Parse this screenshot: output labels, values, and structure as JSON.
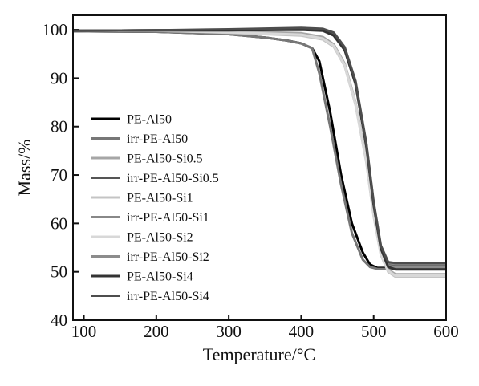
{
  "chart_data": {
    "type": "line",
    "title": "",
    "xlabel": "Temperature/°C",
    "ylabel": "Mass/%",
    "xlim": [
      85,
      600
    ],
    "ylim": [
      40,
      103
    ],
    "xticks": [
      100,
      200,
      300,
      400,
      500,
      600
    ],
    "yticks": [
      40,
      50,
      60,
      70,
      80,
      90,
      100
    ],
    "grid": false,
    "legend_position": "center-left",
    "series": [
      {
        "name": "PE-Al50",
        "color": "#000000",
        "x": [
          85,
          200,
          300,
          350,
          380,
          400,
          415,
          425,
          440,
          455,
          470,
          485,
          495,
          505,
          600
        ],
        "y": [
          99.7,
          99.6,
          99.1,
          98.4,
          97.8,
          97.2,
          96.2,
          93.5,
          83,
          70,
          60,
          54,
          51.5,
          50.8,
          50.8
        ]
      },
      {
        "name": "irr-PE-Al50",
        "color": "#777777",
        "x": [
          85,
          200,
          300,
          350,
          380,
          400,
          415,
          425,
          440,
          455,
          470,
          485,
          495,
          505,
          600
        ],
        "y": [
          99.7,
          99.6,
          99.1,
          98.4,
          97.8,
          97.2,
          96.2,
          91,
          80,
          68,
          58,
          52.5,
          51,
          50.6,
          50.6
        ]
      },
      {
        "name": "PE-Al50-Si0.5",
        "color": "#a6a6a6",
        "x": [
          85,
          200,
          300,
          400,
          430,
          445,
          460,
          475,
          490,
          500,
          510,
          520,
          530,
          600
        ],
        "y": [
          99.8,
          99.8,
          99.7,
          99.3,
          98.5,
          97,
          93,
          85,
          73,
          62,
          54,
          50.5,
          49.5,
          49.5
        ]
      },
      {
        "name": "irr-PE-Al50-Si0.5",
        "color": "#555555",
        "x": [
          85,
          200,
          300,
          400,
          430,
          445,
          460,
          475,
          490,
          500,
          510,
          520,
          530,
          600
        ],
        "y": [
          99.8,
          99.9,
          99.9,
          100.2,
          100,
          99,
          96,
          89,
          76,
          64,
          55,
          51.5,
          51.3,
          51.3
        ]
      },
      {
        "name": "PE-Al50-Si1",
        "color": "#c4c4c4",
        "x": [
          85,
          200,
          300,
          400,
          430,
          445,
          460,
          475,
          490,
          500,
          510,
          520,
          530,
          600
        ],
        "y": [
          99.8,
          99.8,
          99.4,
          98.8,
          98,
          96.5,
          92.5,
          84.5,
          72.5,
          61.5,
          53.5,
          50,
          49,
          49
        ]
      },
      {
        "name": "irr-PE-Al50-Si1",
        "color": "#888888",
        "x": [
          85,
          200,
          300,
          400,
          430,
          445,
          460,
          475,
          490,
          500,
          510,
          520,
          530,
          600
        ],
        "y": [
          99.8,
          99.9,
          99.9,
          100.3,
          100.1,
          99.2,
          96.2,
          89.2,
          76.2,
          64.2,
          55.2,
          51.8,
          51.6,
          51.6
        ]
      },
      {
        "name": "PE-Al50-Si2",
        "color": "#d8d8d8",
        "x": [
          85,
          200,
          300,
          400,
          430,
          445,
          460,
          475,
          490,
          500,
          510,
          520,
          530,
          600
        ],
        "y": [
          99.8,
          99.8,
          99.5,
          99,
          98.2,
          96.7,
          92.7,
          84.7,
          72.7,
          61.7,
          53.7,
          50.2,
          49.2,
          49.2
        ]
      },
      {
        "name": "irr-PE-Al50-Si2",
        "color": "#8c8c8c",
        "x": [
          85,
          200,
          300,
          400,
          430,
          445,
          460,
          475,
          490,
          500,
          510,
          520,
          530,
          600
        ],
        "y": [
          99.8,
          99.9,
          99.9,
          100.2,
          100,
          99,
          96,
          89,
          76,
          64,
          55,
          51.2,
          51,
          51
        ]
      },
      {
        "name": "PE-Al50-Si4",
        "color": "#333333",
        "x": [
          85,
          200,
          300,
          400,
          430,
          445,
          460,
          475,
          490,
          500,
          510,
          520,
          530,
          600
        ],
        "y": [
          99.8,
          99.9,
          99.9,
          100,
          99.8,
          98.8,
          95.8,
          88.8,
          75.8,
          63.8,
          54.8,
          51,
          50.5,
          50.5
        ]
      },
      {
        "name": "irr-PE-Al50-Si4",
        "color": "#4d4d4d",
        "x": [
          85,
          200,
          300,
          400,
          430,
          445,
          460,
          475,
          490,
          500,
          510,
          520,
          530,
          600
        ],
        "y": [
          99.8,
          99.9,
          100.1,
          100.4,
          100.2,
          99.4,
          96.4,
          89.4,
          76.4,
          64.4,
          55.4,
          52,
          51.8,
          51.8
        ]
      }
    ]
  }
}
